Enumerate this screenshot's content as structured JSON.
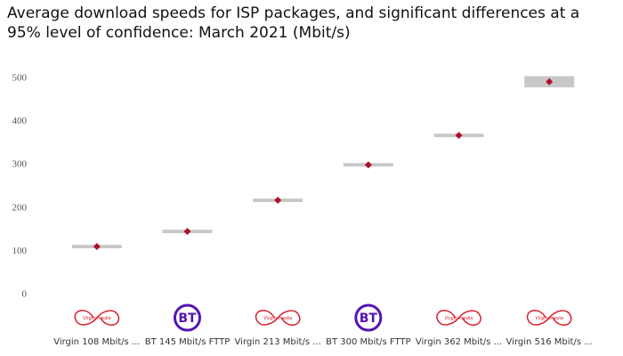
{
  "chart_data": {
    "type": "dot-interval",
    "title": "Average download speeds for ISP packages, and significant differences at a 95% level of confidence: March 2021 (Mbit/s)",
    "categories": [
      "Virgin 108 Mbit/s ...",
      "BT 145 Mbit/s FTTP",
      "Virgin 213 Mbit/s ...",
      "BT 300 Mbit/s FTTP",
      "Virgin 362 Mbit/s ...",
      "Virgin 516 Mbit/s ..."
    ],
    "logos": [
      "Virgin media",
      "BT",
      "Virgin media",
      "BT",
      "Virgin media",
      "Virgin media"
    ],
    "values": [
      111,
      146,
      218,
      300,
      368,
      492
    ],
    "lower": [
      107,
      142,
      214,
      296,
      364,
      479
    ],
    "upper": [
      115,
      150,
      222,
      304,
      372,
      505
    ],
    "color": "#b0102b",
    "interval_color": "#c8c8c8",
    "ylim": [
      0,
      500
    ],
    "yticks": [
      0,
      100,
      200,
      300,
      400,
      500
    ],
    "grid": false
  }
}
